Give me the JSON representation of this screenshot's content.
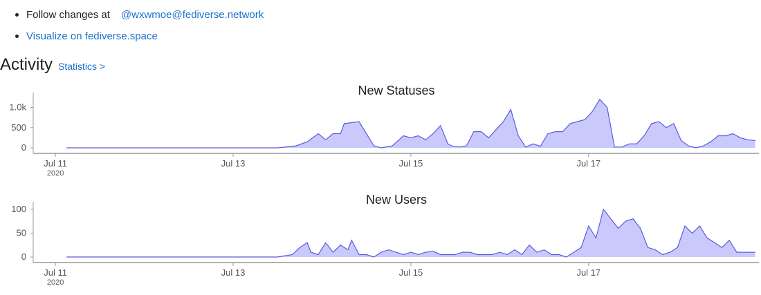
{
  "bullets": [
    {
      "label": "Follow changes at",
      "link": "@wxwmoe@fediverse.network"
    },
    {
      "link": "Visualize on fediverse.space"
    }
  ],
  "activity": {
    "heading": "Activity",
    "stats_link": "Statistics >"
  },
  "colors": {
    "area_fill": "#c9c9fb",
    "line": "#5a5ae0",
    "axis": "#999999",
    "link": "#1a73c9"
  },
  "chart_data": [
    {
      "type": "area",
      "title": "New Statuses",
      "x_tick_labels": [
        "Jul 11",
        "Jul 13",
        "Jul 15",
        "Jul 17"
      ],
      "x_tick_sublabels": [
        "2020",
        "",
        "",
        ""
      ],
      "y_tick_labels": [
        "0",
        "500",
        "1.0k"
      ],
      "y_ticks": [
        0,
        500,
        1000
      ],
      "ylim": [
        0,
        1300
      ],
      "xlim": [
        "2020-07-10 18:00",
        "2020-07-18 22:00"
      ],
      "x": [
        "2020-07-11 03:00",
        "2020-07-13 12:00",
        "2020-07-13 17:00",
        "2020-07-13 20:00",
        "2020-07-13 23:00",
        "2020-07-14 01:00",
        "2020-07-14 03:00",
        "2020-07-14 05:00",
        "2020-07-14 06:00",
        "2020-07-14 10:00",
        "2020-07-14 12:00",
        "2020-07-14 14:00",
        "2020-07-14 16:00",
        "2020-07-14 19:00",
        "2020-07-14 22:00",
        "2020-07-15 00:00",
        "2020-07-15 02:00",
        "2020-07-15 04:00",
        "2020-07-15 06:00",
        "2020-07-15 08:00",
        "2020-07-15 10:00",
        "2020-07-15 11:00",
        "2020-07-15 13:00",
        "2020-07-15 15:00",
        "2020-07-15 17:00",
        "2020-07-15 19:00",
        "2020-07-15 21:00",
        "2020-07-15 23:00",
        "2020-07-16 01:00",
        "2020-07-16 03:00",
        "2020-07-16 05:00",
        "2020-07-16 07:00",
        "2020-07-16 09:00",
        "2020-07-16 11:00",
        "2020-07-16 13:00",
        "2020-07-16 15:00",
        "2020-07-16 17:00",
        "2020-07-16 19:00",
        "2020-07-16 21:00",
        "2020-07-16 23:00",
        "2020-07-17 01:00",
        "2020-07-17 03:00",
        "2020-07-17 05:00",
        "2020-07-17 07:00",
        "2020-07-17 09:00",
        "2020-07-17 11:00",
        "2020-07-17 13:00",
        "2020-07-17 15:00",
        "2020-07-17 17:00",
        "2020-07-17 19:00",
        "2020-07-17 21:00",
        "2020-07-17 23:00",
        "2020-07-18 01:00",
        "2020-07-18 03:00",
        "2020-07-18 05:00",
        "2020-07-18 07:00",
        "2020-07-18 09:00",
        "2020-07-18 11:00",
        "2020-07-18 13:00",
        "2020-07-18 15:00",
        "2020-07-18 17:00",
        "2020-07-18 19:00",
        "2020-07-18 21:00"
      ],
      "values": [
        0,
        0,
        50,
        150,
        350,
        200,
        350,
        350,
        600,
        650,
        350,
        50,
        0,
        50,
        300,
        250,
        300,
        200,
        350,
        550,
        100,
        50,
        20,
        50,
        400,
        400,
        250,
        450,
        650,
        950,
        300,
        20,
        100,
        40,
        350,
        400,
        400,
        600,
        650,
        700,
        900,
        1200,
        1000,
        20,
        20,
        100,
        100,
        300,
        600,
        650,
        500,
        600,
        180,
        50,
        0,
        50,
        150,
        300,
        300,
        350,
        250,
        200,
        180
      ]
    },
    {
      "type": "area",
      "title": "New Users",
      "x_tick_labels": [
        "Jul 11",
        "Jul 13",
        "Jul 15",
        "Jul 17"
      ],
      "x_tick_sublabels": [
        "2020",
        "",
        "",
        ""
      ],
      "y_tick_labels": [
        "0",
        "50",
        "100"
      ],
      "y_ticks": [
        0,
        50,
        100
      ],
      "ylim": [
        0,
        110
      ],
      "xlim": [
        "2020-07-10 18:00",
        "2020-07-18 22:00"
      ],
      "x": [
        "2020-07-11 03:00",
        "2020-07-13 12:00",
        "2020-07-13 16:00",
        "2020-07-13 18:00",
        "2020-07-13 20:00",
        "2020-07-13 21:00",
        "2020-07-13 23:00",
        "2020-07-14 01:00",
        "2020-07-14 03:00",
        "2020-07-14 05:00",
        "2020-07-14 07:00",
        "2020-07-14 08:00",
        "2020-07-14 10:00",
        "2020-07-14 12:00",
        "2020-07-14 14:00",
        "2020-07-14 16:00",
        "2020-07-14 18:00",
        "2020-07-14 20:00",
        "2020-07-14 22:00",
        "2020-07-15 00:00",
        "2020-07-15 02:00",
        "2020-07-15 04:00",
        "2020-07-15 06:00",
        "2020-07-15 08:00",
        "2020-07-15 10:00",
        "2020-07-15 12:00",
        "2020-07-15 14:00",
        "2020-07-15 16:00",
        "2020-07-15 18:00",
        "2020-07-15 20:00",
        "2020-07-15 22:00",
        "2020-07-16 00:00",
        "2020-07-16 02:00",
        "2020-07-16 04:00",
        "2020-07-16 06:00",
        "2020-07-16 08:00",
        "2020-07-16 10:00",
        "2020-07-16 12:00",
        "2020-07-16 14:00",
        "2020-07-16 16:00",
        "2020-07-16 18:00",
        "2020-07-16 20:00",
        "2020-07-16 22:00",
        "2020-07-17 00:00",
        "2020-07-17 02:00",
        "2020-07-17 04:00",
        "2020-07-17 06:00",
        "2020-07-17 08:00",
        "2020-07-17 10:00",
        "2020-07-17 12:00",
        "2020-07-17 14:00",
        "2020-07-17 16:00",
        "2020-07-17 18:00",
        "2020-07-17 20:00",
        "2020-07-17 22:00",
        "2020-07-18 00:00",
        "2020-07-18 02:00",
        "2020-07-18 04:00",
        "2020-07-18 06:00",
        "2020-07-18 08:00",
        "2020-07-18 10:00",
        "2020-07-18 12:00",
        "2020-07-18 14:00",
        "2020-07-18 16:00",
        "2020-07-18 18:00",
        "2020-07-18 20:00",
        "2020-07-18 21:00"
      ],
      "values": [
        0,
        0,
        5,
        20,
        30,
        10,
        5,
        30,
        10,
        25,
        15,
        35,
        5,
        5,
        0,
        10,
        15,
        10,
        5,
        10,
        5,
        10,
        12,
        5,
        5,
        5,
        10,
        10,
        5,
        5,
        5,
        10,
        5,
        15,
        5,
        25,
        10,
        15,
        5,
        5,
        0,
        10,
        20,
        65,
        40,
        100,
        80,
        60,
        75,
        80,
        60,
        20,
        15,
        5,
        10,
        20,
        65,
        50,
        65,
        40,
        30,
        20,
        35,
        10,
        10,
        10,
        10
      ]
    }
  ]
}
